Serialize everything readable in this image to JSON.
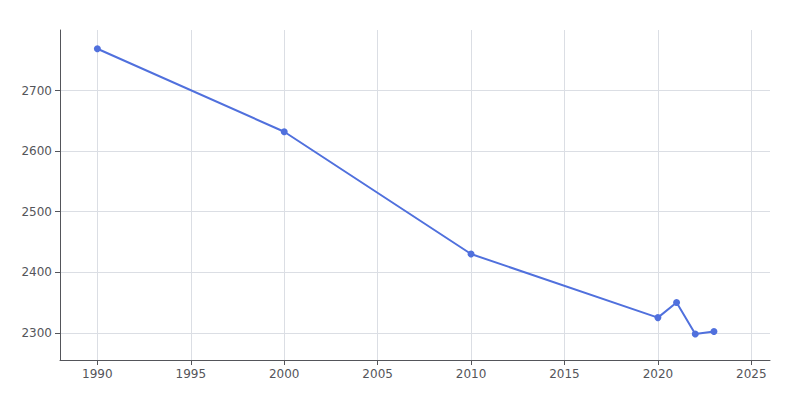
{
  "chart_data": {
    "type": "line",
    "x": [
      1990,
      2000,
      2010,
      2020,
      2021,
      2022,
      2023
    ],
    "values": [
      2769,
      2632,
      2430,
      2325,
      2350,
      2298,
      2302
    ],
    "marker": "circle",
    "xlim": [
      1988,
      2026
    ],
    "xticks": [
      1990,
      1995,
      2000,
      2005,
      2010,
      2015,
      2020,
      2025
    ],
    "ylim": [
      2255,
      2800
    ],
    "yticks": [
      2300,
      2400,
      2500,
      2600,
      2700
    ],
    "grid": true
  }
}
